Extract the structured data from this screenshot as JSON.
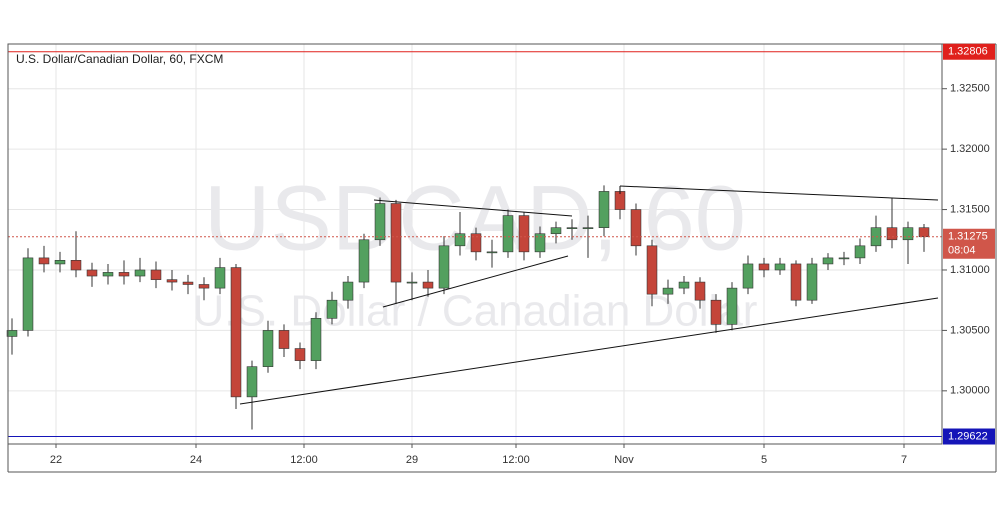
{
  "chart_data": {
    "type": "candlestick",
    "title": "U.S. Dollar/Canadian Dollar, 60, FXCM",
    "watermark": "USDCAD, 60",
    "watermark_subtitle": "U.S. Dollar / Canadian Dollar",
    "up_color": "#53a05f",
    "down_color": "#c4453a",
    "grid": true,
    "xlim": [
      -0.25,
      58.125
    ],
    "xticks": [
      {
        "value": 2.75,
        "label": "22"
      },
      {
        "value": 11.5,
        "label": "24"
      },
      {
        "value": 18.25,
        "label": "12:00"
      },
      {
        "value": 25,
        "label": "29"
      },
      {
        "value": 31.5,
        "label": "12:00"
      },
      {
        "value": 38.25,
        "label": "Nov"
      },
      {
        "value": 47,
        "label": "5"
      },
      {
        "value": 55.75,
        "label": "7"
      }
    ],
    "ylim": [
      1.2956,
      1.3287
    ],
    "yticks": [
      {
        "value": 1.3,
        "label": "1.30000"
      },
      {
        "value": 1.305,
        "label": "1.30500"
      },
      {
        "value": 1.31,
        "label": "1.31000"
      },
      {
        "value": 1.315,
        "label": "1.31500"
      },
      {
        "value": 1.32,
        "label": "1.32000"
      },
      {
        "value": 1.325,
        "label": "1.32500"
      }
    ],
    "levels": [
      {
        "value": 1.32806,
        "color": "#e0201c"
      },
      {
        "value": 1.29622,
        "color": "#1515b8"
      }
    ],
    "last_price": 1.31275,
    "last_price_color": "#d0564a",
    "countdown": "08:04",
    "open": [
      1.3045,
      1.305,
      1.311,
      1.3105,
      1.3108,
      1.31,
      1.3095,
      1.3098,
      1.3095,
      1.31,
      1.3092,
      1.309,
      1.3088,
      1.3085,
      1.3102,
      1.2995,
      1.302,
      1.305,
      1.3035,
      1.3025,
      1.306,
      1.3075,
      1.309,
      1.3125,
      1.3155,
      1.309,
      1.309,
      1.3085,
      1.312,
      1.313,
      1.3115,
      1.3115,
      1.3145,
      1.3115,
      1.313,
      1.3135,
      1.3135,
      1.3135,
      1.3165,
      1.315,
      1.312,
      1.308,
      1.3085,
      1.309,
      1.3075,
      1.3055,
      1.3085,
      1.3105,
      1.31,
      1.3105,
      1.3075,
      1.3105,
      1.311,
      1.311,
      1.312,
      1.3135,
      1.3125,
      1.3135
    ],
    "high": [
      1.306,
      1.3118,
      1.312,
      1.3115,
      1.3132,
      1.3106,
      1.3105,
      1.3108,
      1.311,
      1.3107,
      1.31,
      1.3096,
      1.3094,
      1.311,
      1.3105,
      1.3025,
      1.3058,
      1.3055,
      1.304,
      1.3065,
      1.3082,
      1.3095,
      1.313,
      1.316,
      1.3158,
      1.3098,
      1.31,
      1.3128,
      1.3148,
      1.3135,
      1.3125,
      1.315,
      1.3148,
      1.3136,
      1.314,
      1.3142,
      1.3145,
      1.317,
      1.3168,
      1.3155,
      1.3125,
      1.3092,
      1.3095,
      1.3094,
      1.308,
      1.309,
      1.3112,
      1.311,
      1.311,
      1.3108,
      1.311,
      1.3114,
      1.3115,
      1.3126,
      1.3145,
      1.316,
      1.314,
      1.3138
    ],
    "low": [
      1.303,
      1.3045,
      1.3098,
      1.3098,
      1.3094,
      1.3086,
      1.3088,
      1.3088,
      1.309,
      1.3085,
      1.3083,
      1.308,
      1.3075,
      1.308,
      1.2985,
      1.2968,
      1.3015,
      1.3028,
      1.3018,
      1.3018,
      1.3055,
      1.3068,
      1.3085,
      1.312,
      1.3072,
      1.3075,
      1.3078,
      1.308,
      1.3112,
      1.3108,
      1.3102,
      1.311,
      1.3108,
      1.311,
      1.3122,
      1.3125,
      1.311,
      1.3128,
      1.3142,
      1.3112,
      1.307,
      1.3072,
      1.308,
      1.3068,
      1.3048,
      1.305,
      1.308,
      1.3094,
      1.3096,
      1.307,
      1.3072,
      1.31,
      1.3104,
      1.3105,
      1.3115,
      1.3118,
      1.3105,
      1.3115
    ],
    "close": [
      1.305,
      1.311,
      1.3105,
      1.3108,
      1.31,
      1.3095,
      1.3098,
      1.3095,
      1.31,
      1.3092,
      1.309,
      1.3088,
      1.3085,
      1.3102,
      1.2995,
      1.302,
      1.305,
      1.3035,
      1.3025,
      1.306,
      1.3075,
      1.309,
      1.3125,
      1.3155,
      1.309,
      1.309,
      1.3085,
      1.312,
      1.313,
      1.3115,
      1.3115,
      1.3145,
      1.3115,
      1.313,
      1.3135,
      1.3135,
      1.3135,
      1.3165,
      1.315,
      1.312,
      1.308,
      1.3085,
      1.309,
      1.3075,
      1.3055,
      1.3085,
      1.3105,
      1.31,
      1.3105,
      1.3075,
      1.3105,
      1.311,
      1.311,
      1.312,
      1.3135,
      1.3125,
      1.3135,
      1.31275
    ]
  }
}
